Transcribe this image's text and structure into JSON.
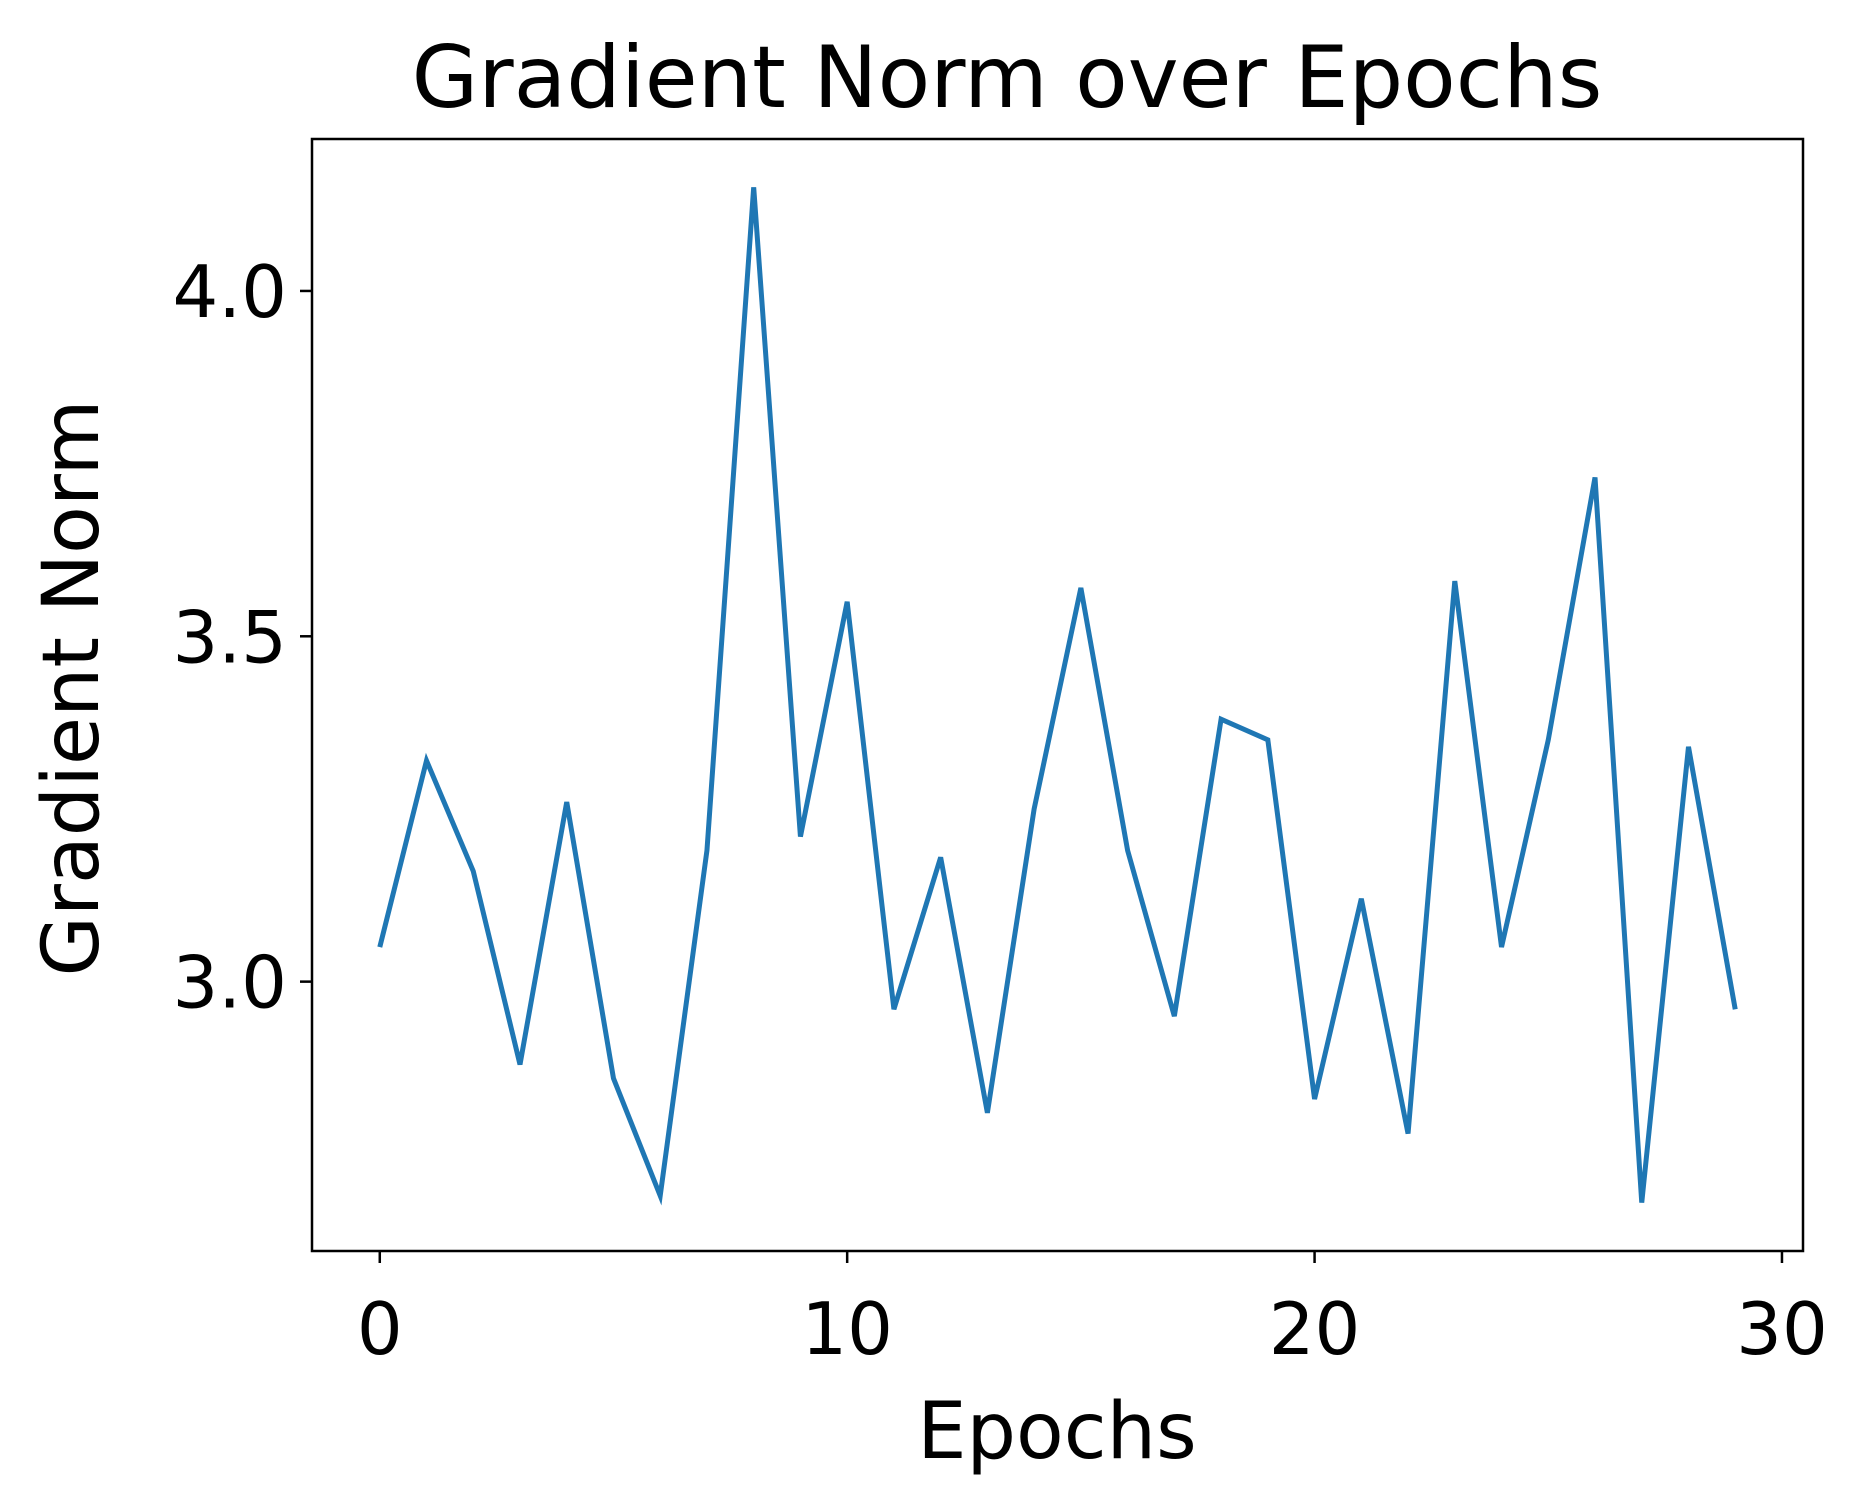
{
  "chart_data": {
    "type": "line",
    "title": "Gradient Norm over Epochs",
    "xlabel": "Epochs",
    "ylabel": "Gradient Norm",
    "xlim": [
      -1.45,
      30.45
    ],
    "ylim": [
      2.61,
      4.22
    ],
    "xticks": [
      0,
      10,
      20,
      30
    ],
    "xtick_labels": [
      "0",
      "10",
      "20",
      "30"
    ],
    "yticks": [
      3.0,
      3.5,
      4.0
    ],
    "ytick_labels": [
      "3.0",
      "3.5",
      "4.0"
    ],
    "grid": false,
    "series": [
      {
        "color": "#1f77b4",
        "x": [
          0,
          1,
          2,
          3,
          4,
          5,
          6,
          7,
          8,
          9,
          10,
          11,
          12,
          13,
          14,
          15,
          16,
          17,
          18,
          19,
          20,
          21,
          22,
          23,
          24,
          25,
          26,
          27,
          28,
          29
        ],
        "y": [
          3.05,
          3.32,
          3.16,
          2.88,
          3.26,
          2.86,
          2.69,
          3.19,
          4.15,
          3.21,
          3.55,
          2.96,
          3.18,
          2.81,
          3.25,
          3.57,
          3.19,
          2.95,
          3.38,
          3.35,
          2.83,
          3.12,
          2.78,
          3.58,
          3.05,
          3.35,
          3.73,
          2.68,
          3.34,
          2.96
        ]
      }
    ]
  }
}
